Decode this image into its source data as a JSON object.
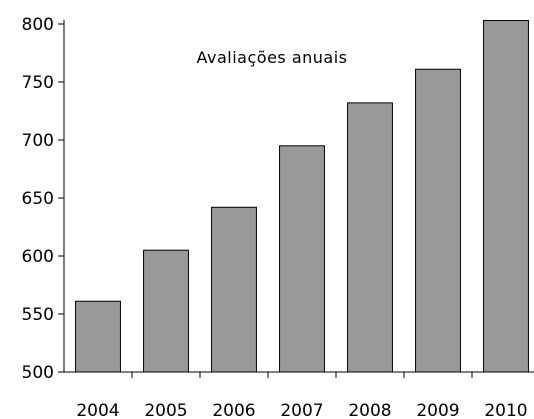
{
  "chart_data": {
    "type": "bar",
    "title": "Avaliações anuais",
    "xlabel": "",
    "ylabel": "",
    "categories": [
      "2004",
      "2005",
      "2006",
      "2007",
      "2008",
      "2009",
      "2010"
    ],
    "values": [
      561,
      605,
      642,
      695,
      732,
      761,
      803
    ],
    "ylim": [
      500,
      800
    ],
    "yticks": [
      500,
      550,
      600,
      650,
      700,
      750,
      800
    ],
    "grid": false,
    "legend": "none",
    "bar_color": "#999999",
    "bar_edge_color": "#000000"
  }
}
